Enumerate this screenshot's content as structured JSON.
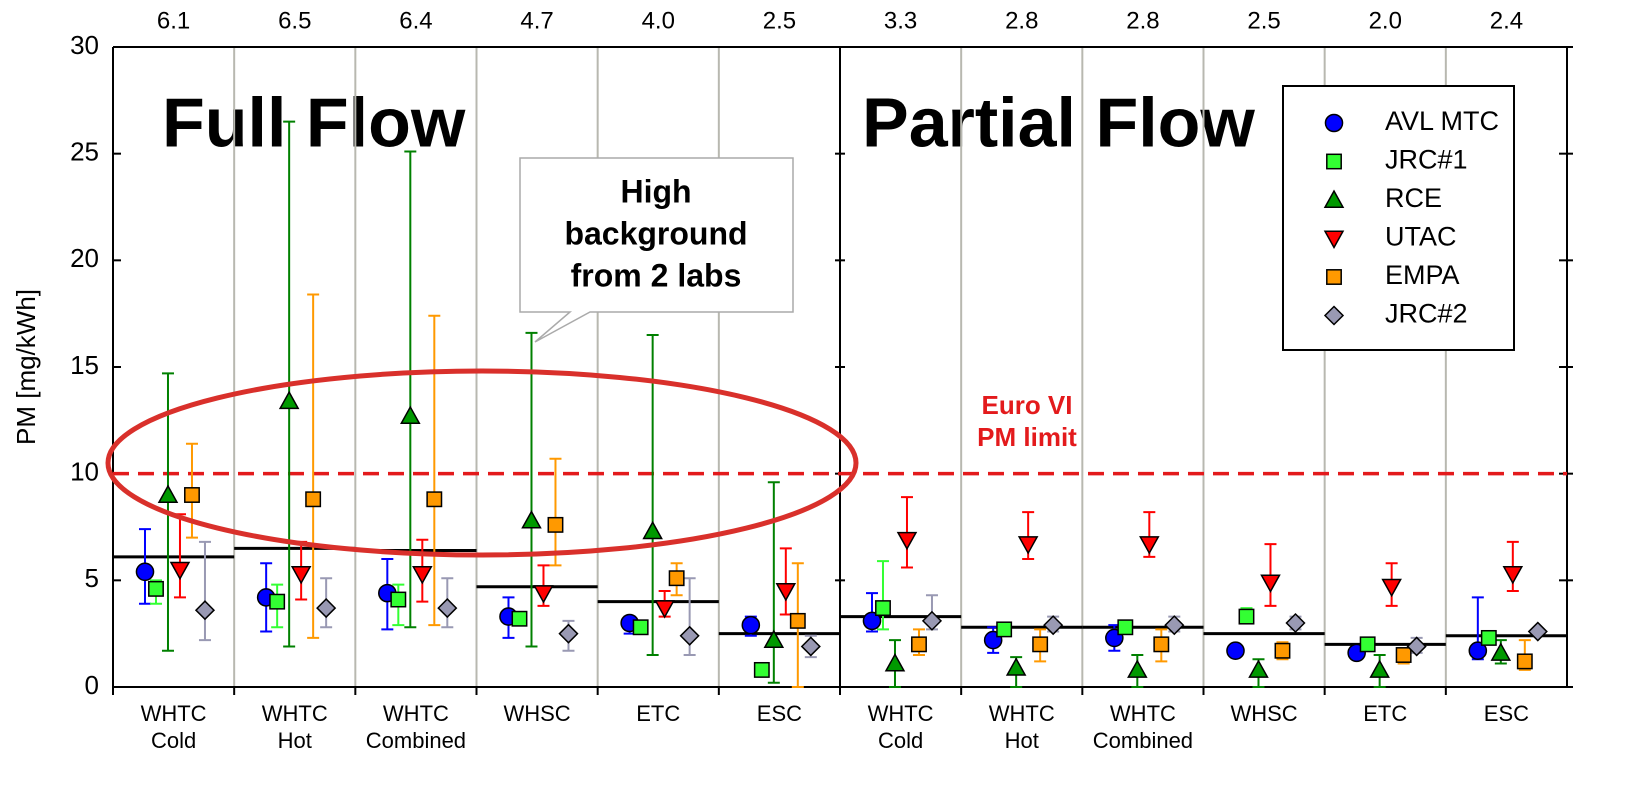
{
  "chart_data": {
    "type": "scatter",
    "ylabel": "PM [mg/kWh]",
    "ylim": [
      0,
      30
    ],
    "yticks": [
      0,
      5,
      10,
      15,
      20,
      25,
      30
    ],
    "grid": true,
    "categories": [
      [
        "WHTC",
        "Cold"
      ],
      [
        "WHTC",
        "Hot"
      ],
      [
        "WHTC",
        "Combined"
      ],
      [
        "WHSC"
      ],
      [
        "ETC"
      ],
      [
        "ESC"
      ],
      [
        "WHTC",
        "Cold"
      ],
      [
        "WHTC",
        "Hot"
      ],
      [
        "WHTC",
        "Combined"
      ],
      [
        "WHSC"
      ],
      [
        "ETC"
      ],
      [
        "ESC"
      ]
    ],
    "means": {
      "color": "#000000",
      "values": [
        6.1,
        6.5,
        6.4,
        4.7,
        4.0,
        2.5,
        3.3,
        2.8,
        2.8,
        2.5,
        2.0,
        2.4
      ],
      "value_labels": [
        "6.1",
        "6.5",
        "6.4",
        "4.7",
        "4.0",
        "2.5",
        "3.3",
        "2.8",
        "2.8",
        "2.5",
        "2.0",
        "2.4"
      ]
    },
    "limit": {
      "value": 10,
      "color": "#e31a1c",
      "label": [
        "Euro VI",
        "PM limit"
      ]
    },
    "annotations": {
      "full_flow": "Full Flow",
      "partial_flow": "Partial Flow",
      "callout": [
        "High",
        "background",
        "from 2 labs"
      ]
    },
    "series": [
      {
        "name": "AVL MTC",
        "marker": "circle",
        "color": "#0000ff",
        "error_color": "#0000ff",
        "values": [
          5.4,
          4.2,
          4.4,
          3.3,
          3.0,
          2.9,
          3.1,
          2.2,
          2.3,
          1.7,
          1.6,
          1.7
        ],
        "lower": [
          3.9,
          2.6,
          2.7,
          2.3,
          2.5,
          2.4,
          2.6,
          1.6,
          1.7,
          null,
          null,
          1.3
        ],
        "upper": [
          7.4,
          5.8,
          6.0,
          4.2,
          3.3,
          3.3,
          4.4,
          2.8,
          2.9,
          null,
          null,
          4.2
        ]
      },
      {
        "name": "JRC#1",
        "marker": "square",
        "color": "#33ff33",
        "error_color": "#33ff33",
        "values": [
          4.6,
          4.0,
          4.1,
          3.2,
          2.8,
          0.8,
          3.7,
          2.7,
          2.8,
          3.3,
          2.0,
          2.3
        ],
        "lower": [
          3.9,
          2.8,
          2.9,
          3.0,
          null,
          null,
          2.7,
          null,
          2.6,
          3.0,
          null,
          2.0
        ],
        "upper": [
          5.0,
          4.8,
          4.8,
          3.5,
          null,
          null,
          5.9,
          null,
          3.1,
          3.7,
          null,
          2.6
        ]
      },
      {
        "name": "RCE",
        "marker": "triangle-up",
        "color": "#009900",
        "error_color": "#008000",
        "values": [
          9.0,
          13.4,
          12.7,
          7.8,
          7.3,
          2.2,
          1.1,
          0.9,
          0.8,
          0.8,
          0.8,
          1.6
        ],
        "lower": [
          1.7,
          1.9,
          2.8,
          1.9,
          1.5,
          0.2,
          0.0,
          0.0,
          0.0,
          0.0,
          0.0,
          1.1
        ],
        "upper": [
          14.7,
          26.5,
          25.1,
          16.6,
          16.5,
          9.6,
          2.2,
          1.4,
          1.5,
          1.3,
          1.5,
          2.2
        ]
      },
      {
        "name": "UTAC",
        "marker": "triangle-down",
        "color": "#ff0000",
        "error_color": "#ff0000",
        "values": [
          5.5,
          5.3,
          5.3,
          4.4,
          3.7,
          4.5,
          6.9,
          6.7,
          6.7,
          4.9,
          4.7,
          5.3
        ],
        "lower": [
          4.2,
          4.1,
          4.0,
          3.8,
          3.3,
          3.4,
          5.6,
          6.0,
          6.1,
          3.8,
          3.8,
          4.5
        ],
        "upper": [
          8.1,
          6.8,
          6.9,
          5.7,
          4.5,
          6.5,
          8.9,
          8.2,
          8.2,
          6.7,
          5.8,
          6.8
        ]
      },
      {
        "name": "EMPA",
        "marker": "square",
        "color": "#ff9900",
        "error_color": "#ff9900",
        "values": [
          9.0,
          8.8,
          8.8,
          7.6,
          5.1,
          3.1,
          2.0,
          2.0,
          2.0,
          1.7,
          1.5,
          1.2
        ],
        "lower": [
          7.0,
          2.3,
          2.9,
          5.7,
          4.3,
          0.0,
          1.5,
          1.2,
          1.2,
          1.3,
          1.1,
          0.8
        ],
        "upper": [
          11.4,
          18.4,
          17.4,
          10.7,
          5.8,
          5.8,
          2.7,
          2.7,
          2.7,
          2.1,
          1.8,
          2.2
        ]
      },
      {
        "name": "JRC#2",
        "marker": "diamond",
        "color": "#9999b3",
        "error_color": "#9999b3",
        "values": [
          3.6,
          3.7,
          3.7,
          2.5,
          2.4,
          1.9,
          3.1,
          2.9,
          2.9,
          3.0,
          1.9,
          2.6
        ],
        "lower": [
          2.2,
          2.8,
          2.8,
          1.7,
          1.5,
          1.4,
          2.7,
          2.6,
          2.6,
          2.7,
          1.6,
          null
        ],
        "upper": [
          6.8,
          5.1,
          5.1,
          3.1,
          5.1,
          2.4,
          4.3,
          3.3,
          3.3,
          3.3,
          2.3,
          null
        ]
      }
    ]
  }
}
